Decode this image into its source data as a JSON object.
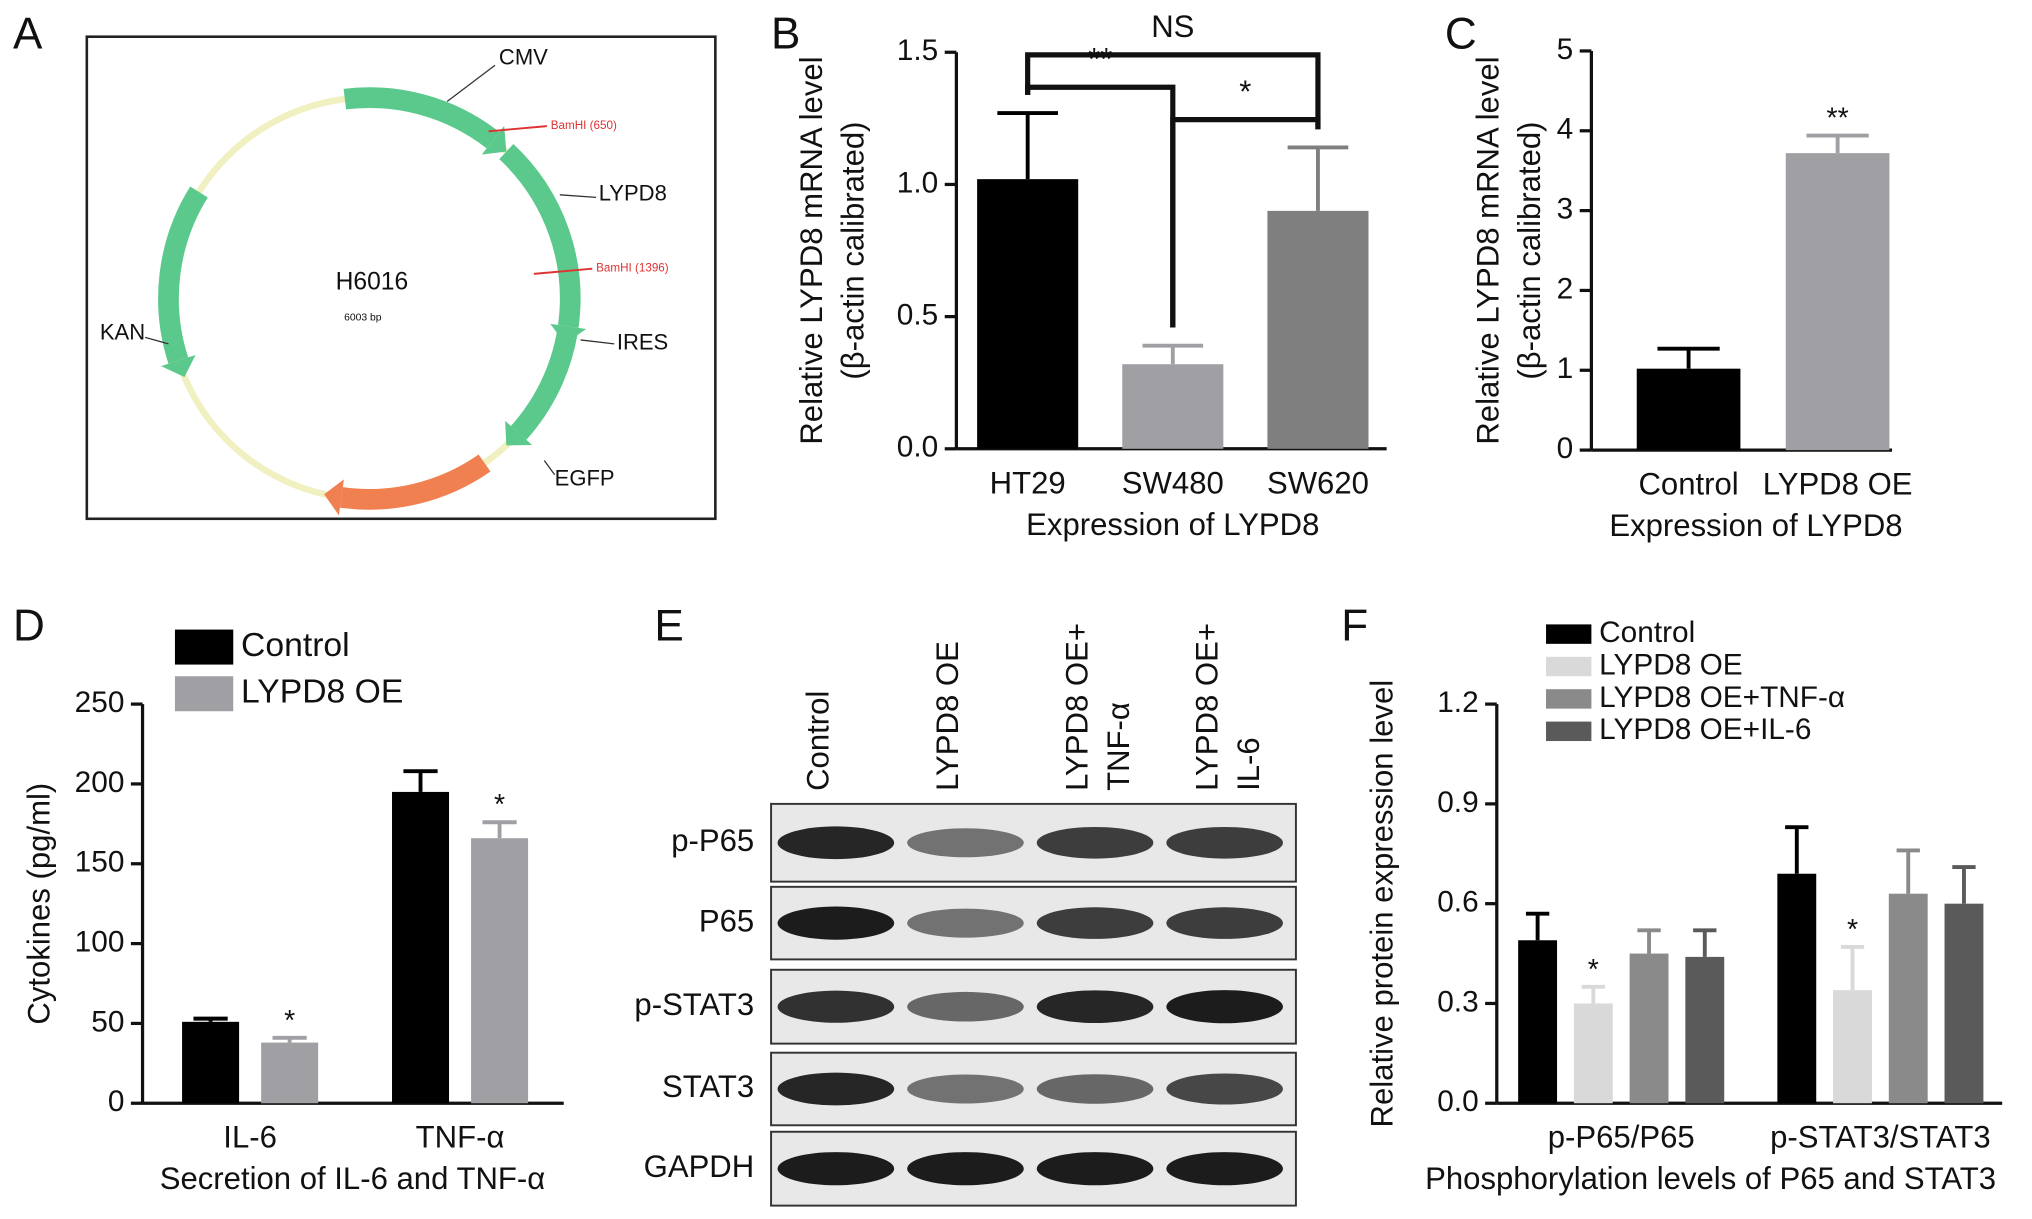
{
  "plasmid": {
    "panel": "A",
    "name": "H6016",
    "size": "6003 bp",
    "features": [
      "CMV",
      "LYPD8",
      "IRES",
      "EGFP",
      "KAN"
    ],
    "sites": [
      "BamHI (650)",
      "BamHI (1396)"
    ]
  },
  "blot": {
    "panel": "E",
    "columns": [
      [
        "Control"
      ],
      [
        "LYPD8 OE"
      ],
      [
        "LYPD8 OE+",
        "TNF-α"
      ],
      [
        "LYPD8 OE+",
        "IL-6"
      ]
    ],
    "rows": [
      "p-P65",
      "P65",
      "p-STAT3",
      "STAT3",
      "GAPDH"
    ]
  },
  "chart_data": [
    {
      "type": "bar",
      "panel": "B",
      "categories": [
        "HT29",
        "SW480",
        "SW620"
      ],
      "values": [
        1.02,
        0.32,
        0.9
      ],
      "errors": [
        0.25,
        0.07,
        0.24
      ],
      "colors": [
        "#000000",
        "#a0a0a4",
        "#7f7f7f"
      ],
      "ylim": [
        0,
        1.5
      ],
      "yticks": [
        {
          "value": 0,
          "label": "0.0"
        },
        {
          "value": 0.5,
          "label": "0.5"
        },
        {
          "value": 1,
          "label": "1.0"
        },
        {
          "value": 1.5,
          "label": "1.5"
        }
      ],
      "xlabel": "Expression of LYPD8",
      "ylabel": [
        "Relative LYPD8 mRNA level",
        "(β-actin calibrated)"
      ],
      "brackets": [
        {
          "text": "NS",
          "from": 0,
          "to": 2
        },
        {
          "text": "**",
          "from": 0,
          "to": 1
        },
        {
          "text": "*",
          "from": 1,
          "to": 2
        }
      ]
    },
    {
      "type": "bar",
      "panel": "C",
      "categories": [
        "Control",
        "LYPD8 OE"
      ],
      "values": [
        1.02,
        3.72
      ],
      "errors": [
        0.25,
        0.22
      ],
      "colors": [
        "#000000",
        "#a0a0a4"
      ],
      "significance": [
        null,
        "**"
      ],
      "ylim": [
        0,
        5
      ],
      "yticks": [
        0,
        1,
        2,
        3,
        4,
        5
      ],
      "xlabel": "Expression of LYPD8",
      "ylabel": [
        "Relative LYPD8 mRNA level",
        "(β-actin calibrated)"
      ]
    },
    {
      "type": "bar",
      "panel": "D",
      "categories": [
        "IL-6",
        "TNF-α"
      ],
      "ylim": [
        0,
        250
      ],
      "yticks": [
        0,
        50,
        100,
        150,
        200,
        250
      ],
      "series": [
        {
          "name": "Control",
          "color": "#000000",
          "values": [
            51,
            195
          ],
          "errors": [
            2,
            13
          ]
        },
        {
          "name": "LYPD8 OE",
          "color": "#a0a0a4",
          "values": [
            38,
            166
          ],
          "errors": [
            3,
            10
          ],
          "significance": [
            "*",
            "*"
          ]
        }
      ],
      "xlabel": "Secretion of IL-6 and TNF-α",
      "ylabel": "Cytokines (pg/ml)",
      "legend": "upper left"
    },
    {
      "type": "bar",
      "panel": "F",
      "categories": [
        "p-P65/P65",
        "p-STAT3/STAT3"
      ],
      "ylim": [
        0,
        1.2
      ],
      "yticks": [
        {
          "value": 0,
          "label": "0.0"
        },
        {
          "value": 0.3,
          "label": "0.3"
        },
        {
          "value": 0.6,
          "label": "0.6"
        },
        {
          "value": 0.9,
          "label": "0.9"
        },
        {
          "value": 1.2,
          "label": "1.2"
        }
      ],
      "series": [
        {
          "name": "Control",
          "color": "#000000",
          "values": [
            0.49,
            0.69
          ],
          "errors": [
            0.08,
            0.14
          ]
        },
        {
          "name": "LYPD8 OE",
          "color": "#d9d9d9",
          "values": [
            0.3,
            0.34
          ],
          "errors": [
            0.05,
            0.13
          ],
          "significance": [
            "*",
            "*"
          ]
        },
        {
          "name": "LYPD8 OE+TNF-α",
          "color": "#8a8a8a",
          "values": [
            0.45,
            0.63
          ],
          "errors": [
            0.07,
            0.13
          ]
        },
        {
          "name": "LYPD8 OE+IL-6",
          "color": "#5a5a5a",
          "values": [
            0.44,
            0.6
          ],
          "errors": [
            0.08,
            0.11
          ]
        }
      ],
      "xlabel": "Phosphorylation levels of P65 and STAT3",
      "ylabel": "Relative protein expression level",
      "legend": "upper left"
    }
  ]
}
